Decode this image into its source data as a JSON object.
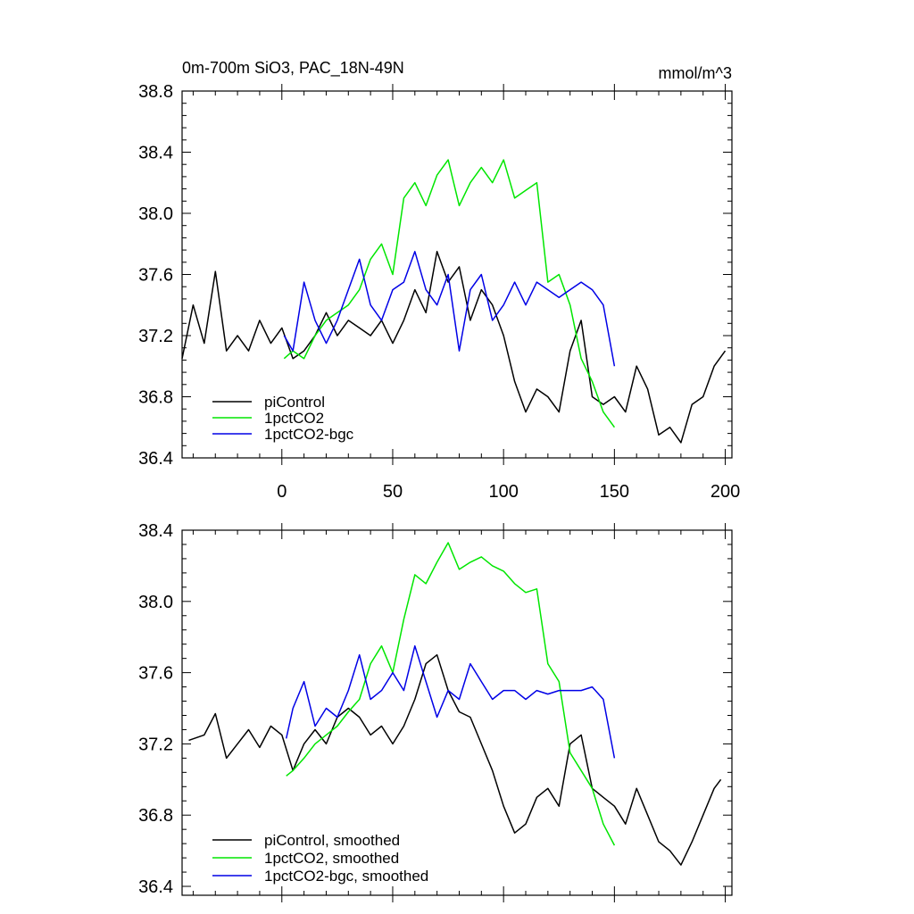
{
  "chart_data": [
    {
      "type": "line",
      "title": "0m-700m SiO3, PAC_18N-49N",
      "units": "mmol/m^3",
      "xlim": [
        -45,
        203
      ],
      "ylim": [
        36.4,
        38.8
      ],
      "xticks": [
        0,
        50,
        100,
        150,
        200
      ],
      "xtick_labels": [
        "0",
        "50",
        "100",
        "150",
        "200"
      ],
      "yticks": [
        36.4,
        36.8,
        37.2,
        37.6,
        38.0,
        38.4,
        38.8
      ],
      "ytick_labels": [
        "36.4",
        "36.8",
        "37.2",
        "37.6",
        "38.0",
        "38.4",
        "38.8"
      ],
      "legend_position": "bottom-left",
      "series": [
        {
          "name": "piControl",
          "color": "#000000",
          "x": [
            -45,
            -40,
            -35,
            -30,
            -25,
            -20,
            -15,
            -10,
            -5,
            0,
            5,
            10,
            15,
            20,
            25,
            30,
            35,
            40,
            45,
            50,
            55,
            60,
            65,
            70,
            75,
            80,
            85,
            90,
            95,
            100,
            105,
            110,
            115,
            120,
            125,
            130,
            135,
            140,
            145,
            150,
            155,
            160,
            165,
            170,
            175,
            180,
            185,
            190,
            195,
            200
          ],
          "values": [
            37.05,
            37.4,
            37.15,
            37.62,
            37.1,
            37.2,
            37.1,
            37.3,
            37.15,
            37.25,
            37.05,
            37.1,
            37.2,
            37.35,
            37.2,
            37.3,
            37.25,
            37.2,
            37.3,
            37.15,
            37.3,
            37.5,
            37.35,
            37.75,
            37.55,
            37.65,
            37.3,
            37.5,
            37.4,
            37.2,
            36.9,
            36.7,
            36.85,
            36.8,
            36.7,
            37.1,
            37.3,
            36.8,
            36.75,
            36.8,
            36.7,
            37.0,
            36.85,
            36.55,
            36.6,
            36.5,
            36.75,
            36.8,
            37.0,
            37.1
          ]
        },
        {
          "name": "1pctCO2",
          "color": "#00e600",
          "x": [
            1,
            5,
            10,
            15,
            20,
            25,
            30,
            35,
            40,
            45,
            50,
            55,
            60,
            65,
            70,
            75,
            80,
            85,
            90,
            95,
            100,
            105,
            110,
            115,
            120,
            125,
            130,
            135,
            140,
            145,
            150
          ],
          "values": [
            37.05,
            37.1,
            37.05,
            37.2,
            37.3,
            37.35,
            37.4,
            37.5,
            37.7,
            37.8,
            37.6,
            38.1,
            38.2,
            38.05,
            38.25,
            38.35,
            38.05,
            38.2,
            38.3,
            38.2,
            38.35,
            38.1,
            38.15,
            38.2,
            37.55,
            37.6,
            37.4,
            37.05,
            36.9,
            36.7,
            36.6
          ]
        },
        {
          "name": "1pctCO2-bgc",
          "color": "#0000e6",
          "x": [
            1,
            5,
            10,
            15,
            20,
            25,
            30,
            35,
            40,
            45,
            50,
            55,
            60,
            65,
            70,
            75,
            80,
            85,
            90,
            95,
            100,
            105,
            110,
            115,
            120,
            125,
            130,
            135,
            140,
            145,
            150
          ],
          "values": [
            37.2,
            37.1,
            37.55,
            37.3,
            37.15,
            37.3,
            37.5,
            37.7,
            37.4,
            37.3,
            37.5,
            37.55,
            37.75,
            37.5,
            37.4,
            37.6,
            37.1,
            37.5,
            37.6,
            37.3,
            37.4,
            37.55,
            37.4,
            37.55,
            37.5,
            37.45,
            37.5,
            37.55,
            37.5,
            37.4,
            37.0
          ]
        }
      ]
    },
    {
      "type": "line",
      "title": "",
      "xlim": [
        -45,
        203
      ],
      "ylim": [
        36.35,
        38.4
      ],
      "xticks": [
        0,
        50,
        100,
        150,
        200
      ],
      "yticks": [
        36.4,
        36.8,
        37.2,
        37.6,
        38.0,
        38.4
      ],
      "ytick_labels": [
        "36.4",
        "36.8",
        "37.2",
        "37.6",
        "38.0",
        "38.4"
      ],
      "legend_position": "bottom-left",
      "series": [
        {
          "name": "piControl, smoothed",
          "color": "#000000",
          "x": [
            -42,
            -35,
            -30,
            -25,
            -20,
            -15,
            -10,
            -5,
            0,
            5,
            10,
            15,
            20,
            25,
            30,
            35,
            40,
            45,
            50,
            55,
            60,
            65,
            70,
            75,
            80,
            85,
            90,
            95,
            100,
            105,
            110,
            115,
            120,
            125,
            130,
            135,
            140,
            145,
            150,
            155,
            160,
            165,
            170,
            175,
            180,
            185,
            190,
            195,
            198
          ],
          "values": [
            37.22,
            37.25,
            37.37,
            37.12,
            37.2,
            37.28,
            37.18,
            37.3,
            37.25,
            37.05,
            37.2,
            37.28,
            37.2,
            37.35,
            37.4,
            37.35,
            37.25,
            37.3,
            37.2,
            37.3,
            37.45,
            37.65,
            37.7,
            37.5,
            37.38,
            37.35,
            37.2,
            37.05,
            36.85,
            36.7,
            36.75,
            36.9,
            36.95,
            36.85,
            37.2,
            37.25,
            36.95,
            36.9,
            36.85,
            36.75,
            36.95,
            36.8,
            36.65,
            36.6,
            36.52,
            36.65,
            36.8,
            36.95,
            37.0
          ]
        },
        {
          "name": "1pctCO2, smoothed",
          "color": "#00e600",
          "x": [
            2,
            5,
            10,
            15,
            20,
            25,
            30,
            35,
            40,
            45,
            50,
            55,
            60,
            65,
            70,
            75,
            80,
            85,
            90,
            95,
            100,
            105,
            110,
            115,
            120,
            125,
            130,
            135,
            140,
            145,
            150
          ],
          "values": [
            37.02,
            37.05,
            37.12,
            37.2,
            37.25,
            37.3,
            37.38,
            37.45,
            37.65,
            37.75,
            37.6,
            37.9,
            38.15,
            38.1,
            38.22,
            38.33,
            38.18,
            38.22,
            38.25,
            38.2,
            38.17,
            38.1,
            38.05,
            38.07,
            37.65,
            37.55,
            37.15,
            37.05,
            36.95,
            36.75,
            36.63
          ]
        },
        {
          "name": "1pctCO2-bgc, smoothed",
          "color": "#0000e6",
          "x": [
            2,
            5,
            10,
            15,
            20,
            25,
            30,
            35,
            40,
            45,
            50,
            55,
            60,
            65,
            70,
            75,
            80,
            85,
            90,
            95,
            100,
            105,
            110,
            115,
            120,
            125,
            130,
            135,
            140,
            145,
            150
          ],
          "values": [
            37.23,
            37.4,
            37.55,
            37.3,
            37.4,
            37.35,
            37.5,
            37.7,
            37.45,
            37.5,
            37.6,
            37.5,
            37.75,
            37.55,
            37.35,
            37.5,
            37.45,
            37.65,
            37.55,
            37.45,
            37.5,
            37.5,
            37.45,
            37.5,
            37.48,
            37.5,
            37.5,
            37.5,
            37.52,
            37.45,
            37.12
          ]
        }
      ]
    }
  ]
}
